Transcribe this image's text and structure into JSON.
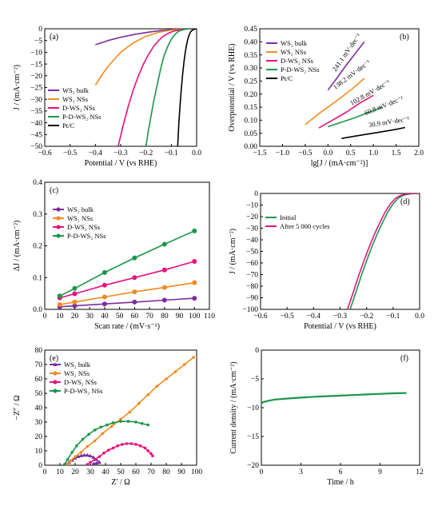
{
  "figure": {
    "background": "#ffffff"
  },
  "chart_data": [
    {
      "id": "a",
      "panel_label": "(a)",
      "type": "line",
      "xlabel": "Potential / V (vs RHE)",
      "ylabel": "J / (mA·cm⁻²)",
      "xlim": [
        -0.6,
        0.0
      ],
      "ylim": [
        -50,
        0
      ],
      "xticks": [
        -0.6,
        -0.5,
        -0.4,
        -0.3,
        -0.2,
        -0.1,
        0.0
      ],
      "xtick_labels": [
        "−0.6",
        "−0.5",
        "−0.4",
        "−0.3",
        "−0.2",
        "−0.1",
        "0.0"
      ],
      "yticks": [
        0,
        -5,
        -10,
        -15,
        -20,
        -25,
        -30,
        -35,
        -40,
        -45,
        -50
      ],
      "ytick_labels": [
        "0",
        "−5",
        "−10",
        "−15",
        "−20",
        "−25",
        "−30",
        "−35",
        "−40",
        "−45",
        "−50"
      ],
      "legend_position": "bottom-left",
      "series": [
        {
          "name": "WS₂ bulk",
          "color": "#7b2d9e",
          "x": [
            -0.4,
            -0.35,
            -0.3,
            -0.25,
            -0.2,
            -0.15,
            -0.1,
            -0.05,
            0.0
          ],
          "y": [
            -6.8,
            -5.0,
            -3.6,
            -2.5,
            -1.6,
            -0.9,
            -0.4,
            -0.1,
            0
          ]
        },
        {
          "name": "WS₂ NSs",
          "color": "#f28a1e",
          "x": [
            -0.4,
            -0.37,
            -0.35,
            -0.3,
            -0.25,
            -0.2,
            -0.15,
            -0.1,
            -0.05,
            0.0
          ],
          "y": [
            -24,
            -19,
            -16,
            -10,
            -6,
            -3.2,
            -1.5,
            -0.5,
            -0.1,
            0
          ]
        },
        {
          "name": "D-WS₂ NSs",
          "color": "#e6127f",
          "x": [
            -0.31,
            -0.29,
            -0.27,
            -0.25,
            -0.23,
            -0.21,
            -0.19,
            -0.17,
            -0.15,
            -0.13,
            -0.11,
            -0.09,
            -0.07,
            -0.05,
            -0.03,
            0.0
          ],
          "y": [
            -50,
            -41,
            -33,
            -26,
            -20,
            -15,
            -11,
            -7.5,
            -5,
            -3,
            -1.8,
            -1,
            -0.5,
            -0.2,
            -0.05,
            0
          ]
        },
        {
          "name": "P-D-WS₂ NSs",
          "color": "#1a9648",
          "x": [
            -0.2,
            -0.19,
            -0.18,
            -0.17,
            -0.16,
            -0.15,
            -0.14,
            -0.13,
            -0.12,
            -0.11,
            -0.1,
            -0.09,
            -0.08,
            -0.07,
            -0.05,
            -0.03,
            0.0
          ],
          "y": [
            -50,
            -43,
            -37,
            -31,
            -26,
            -21,
            -16,
            -12,
            -9,
            -6.5,
            -4.5,
            -3,
            -1.8,
            -1,
            -0.3,
            -0.05,
            0
          ]
        },
        {
          "name": "Pt/C",
          "color": "#000000",
          "x": [
            -0.075,
            -0.07,
            -0.065,
            -0.06,
            -0.055,
            -0.05,
            -0.045,
            -0.04,
            -0.035,
            -0.03,
            -0.025,
            -0.02,
            -0.01,
            0.0
          ],
          "y": [
            -50,
            -40,
            -32,
            -25,
            -19,
            -14,
            -10,
            -7,
            -4.5,
            -2.8,
            -1.5,
            -0.8,
            -0.2,
            0
          ]
        }
      ]
    },
    {
      "id": "b",
      "panel_label": "(b)",
      "type": "line",
      "xlabel": "lg[J / (mA·cm⁻²)]",
      "ylabel": "Overpotential / V (vs RHE)",
      "xlim": [
        -1.5,
        2.0
      ],
      "ylim": [
        0.0,
        0.45
      ],
      "xticks": [
        -1.5,
        -1.0,
        -0.5,
        0.0,
        0.5,
        1.0,
        1.5,
        2.0
      ],
      "xtick_labels": [
        "−1.5",
        "−1.0",
        "−0.5",
        "0.0",
        "0.5",
        "1.0",
        "1.5",
        "2.0"
      ],
      "yticks": [
        0.0,
        0.05,
        0.1,
        0.15,
        0.2,
        0.25,
        0.3,
        0.35,
        0.4,
        0.45
      ],
      "ytick_labels": [
        "0.00",
        "0.05",
        "0.10",
        "0.15",
        "0.20",
        "0.25",
        "0.30",
        "0.35",
        "0.40",
        "0.45"
      ],
      "legend_position": "top-left",
      "series": [
        {
          "name": "WS₂ bulk",
          "color": "#7b2d9e",
          "x": [
            0.0,
            0.2,
            0.4,
            0.6,
            0.8
          ],
          "y": [
            0.215,
            0.262,
            0.31,
            0.355,
            0.4
          ]
        },
        {
          "name": "WS₂ NSs",
          "color": "#f28a1e",
          "x": [
            -0.5,
            -0.2,
            0.2,
            0.5,
            0.8
          ],
          "y": [
            0.083,
            0.125,
            0.175,
            0.215,
            0.26
          ]
        },
        {
          "name": "D-WS₂ NSs",
          "color": "#e6127f",
          "x": [
            -0.2,
            0.1,
            0.4,
            0.7,
            1.0
          ],
          "y": [
            0.07,
            0.1,
            0.13,
            0.165,
            0.195
          ]
        },
        {
          "name": "P-D-WS₂ NSs",
          "color": "#1a9648",
          "x": [
            0.0,
            0.3,
            0.6,
            0.9,
            1.2
          ],
          "y": [
            0.075,
            0.092,
            0.11,
            0.13,
            0.15
          ]
        },
        {
          "name": "Pt/C",
          "color": "#000000",
          "x": [
            0.3,
            0.7,
            1.1,
            1.5,
            1.7
          ],
          "y": [
            0.03,
            0.042,
            0.053,
            0.065,
            0.072
          ]
        }
      ],
      "annotations": [
        {
          "text": "241.1 mV·dec⁻¹",
          "color": "#7b2d9e",
          "x": 0.45,
          "y": 0.355,
          "angle": -55
        },
        {
          "text": "138.2 mV·dec⁻¹",
          "color": "#f28a1e",
          "x": 0.55,
          "y": 0.268,
          "angle": -37
        },
        {
          "text": "102.8 mV·dec⁻¹",
          "color": "#e6127f",
          "x": 0.95,
          "y": 0.198,
          "angle": -30
        },
        {
          "text": "60.8 mV·dec⁻¹",
          "color": "#1a9648",
          "x": 1.25,
          "y": 0.148,
          "angle": -22
        },
        {
          "text": "30.9 mV·dec⁻¹",
          "color": "#000000",
          "x": 1.35,
          "y": 0.085,
          "angle": -9
        }
      ]
    },
    {
      "id": "c",
      "panel_label": "(c)",
      "type": "line",
      "xlabel": "Scan rate / (mV·s⁻¹)",
      "ylabel": "ΔJ / (mA·cm⁻²)",
      "xlim": [
        0,
        110
      ],
      "ylim": [
        0.0,
        0.4
      ],
      "xticks": [
        0,
        10,
        20,
        30,
        40,
        50,
        60,
        70,
        80,
        90,
        100,
        110
      ],
      "xtick_labels": [
        "0",
        "10",
        "20",
        "30",
        "40",
        "50",
        "60",
        "70",
        "80",
        "90",
        "100",
        "110"
      ],
      "yticks": [
        0.0,
        0.1,
        0.2,
        0.3,
        0.4
      ],
      "ytick_labels": [
        "0.0",
        "0.1",
        "0.2",
        "0.3",
        "0.4"
      ],
      "legend_position": "top-left",
      "series": [
        {
          "name": "WS₂ bulk",
          "color": "#7b2d9e",
          "x": [
            10,
            20,
            40,
            60,
            80,
            100
          ],
          "y": [
            0.008,
            0.011,
            0.017,
            0.023,
            0.029,
            0.035
          ]
        },
        {
          "name": "WS₂ NSs",
          "color": "#f28a1e",
          "x": [
            10,
            20,
            40,
            60,
            80,
            100
          ],
          "y": [
            0.015,
            0.023,
            0.039,
            0.055,
            0.069,
            0.084
          ]
        },
        {
          "name": "D-WS₂ NSs",
          "color": "#e6127f",
          "x": [
            10,
            20,
            40,
            60,
            80,
            100
          ],
          "y": [
            0.036,
            0.049,
            0.076,
            0.1,
            0.124,
            0.151
          ]
        },
        {
          "name": "P-D-WS₂ NSs",
          "color": "#1a9648",
          "x": [
            10,
            20,
            40,
            60,
            80,
            100
          ],
          "y": [
            0.042,
            0.066,
            0.116,
            0.162,
            0.205,
            0.247
          ]
        }
      ]
    },
    {
      "id": "d",
      "panel_label": "(d)",
      "type": "line",
      "xlabel": "Potential / V (vs RHE)",
      "ylabel": "J / (mA·cm⁻²)",
      "xlim": [
        -0.6,
        0.0
      ],
      "ylim": [
        -100,
        0
      ],
      "xticks": [
        -0.6,
        -0.5,
        -0.4,
        -0.3,
        -0.2,
        -0.1,
        0.0
      ],
      "xtick_labels": [
        "−0.6",
        "−0.5",
        "−0.4",
        "−0.3",
        "−0.2",
        "−0.1",
        "0.0"
      ],
      "yticks": [
        0,
        -10,
        -20,
        -30,
        -40,
        -50,
        -60,
        -70,
        -80,
        -90,
        -100
      ],
      "ytick_labels": [
        "0",
        "−10",
        "−20",
        "−30",
        "−40",
        "−50",
        "−60",
        "−70",
        "−80",
        "−90",
        "−100"
      ],
      "legend_position": "middle-left",
      "series": [
        {
          "name": "Initial",
          "color": "#1a9648",
          "x": [
            -0.262,
            -0.24,
            -0.22,
            -0.2,
            -0.18,
            -0.16,
            -0.14,
            -0.12,
            -0.1,
            -0.08,
            -0.06,
            -0.04,
            -0.02,
            0.0
          ],
          "y": [
            -100,
            -85,
            -71,
            -58,
            -46,
            -35,
            -25,
            -16,
            -9,
            -4,
            -1.5,
            -0.5,
            -0.1,
            0
          ]
        },
        {
          "name": "After 5 000 cycles",
          "color": "#e6127f",
          "x": [
            -0.272,
            -0.25,
            -0.23,
            -0.21,
            -0.19,
            -0.17,
            -0.15,
            -0.13,
            -0.11,
            -0.09,
            -0.07,
            -0.05,
            -0.03,
            0.0
          ],
          "y": [
            -100,
            -85,
            -71,
            -58,
            -46,
            -35,
            -25,
            -16,
            -9,
            -4,
            -1.5,
            -0.5,
            -0.1,
            0
          ]
        }
      ]
    },
    {
      "id": "e",
      "panel_label": "(e)",
      "type": "scatter",
      "xlabel": "Z′ / Ω",
      "ylabel": "−Z″ / Ω",
      "xlim": [
        0,
        100
      ],
      "ylim": [
        0,
        80
      ],
      "xticks": [
        0,
        10,
        20,
        30,
        40,
        50,
        60,
        70,
        80,
        90,
        100
      ],
      "xtick_labels": [
        "0",
        "10",
        "20",
        "30",
        "40",
        "50",
        "60",
        "70",
        "80",
        "90",
        "100"
      ],
      "yticks": [
        0,
        10,
        20,
        30,
        40,
        50,
        60,
        70,
        80
      ],
      "ytick_labels": [
        "0",
        "10",
        "20",
        "30",
        "40",
        "50",
        "60",
        "70",
        "80"
      ],
      "legend_position": "top-left",
      "series": [
        {
          "name": "WS₂ bulk",
          "color": "#7b2d9e",
          "marker": "triangle",
          "x": [
            14,
            16,
            18,
            20,
            22,
            24,
            26,
            28,
            30,
            32,
            34,
            36,
            34,
            32
          ],
          "y": [
            0.5,
            2,
            3.5,
            5,
            6,
            6.6,
            7,
            7,
            6.5,
            5.5,
            4,
            2,
            1.5,
            1
          ]
        },
        {
          "name": "WS₂ NSs",
          "color": "#f28a1e",
          "marker": "circle",
          "x": [
            15,
            17,
            20,
            24,
            28,
            33,
            38,
            44,
            50,
            56,
            62,
            68,
            74,
            80,
            86,
            92,
            98
          ],
          "y": [
            0.5,
            3,
            6,
            9,
            13,
            17,
            22,
            27,
            32,
            37,
            43,
            49,
            55,
            60,
            65,
            70,
            75
          ]
        },
        {
          "name": "D-WS₂ NSs",
          "color": "#e6127f",
          "marker": "circle",
          "x": [
            28,
            30,
            33,
            36,
            39,
            42,
            45,
            48,
            51,
            54,
            57,
            60,
            63,
            66,
            68,
            70,
            71
          ],
          "y": [
            0.5,
            2,
            4,
            6,
            8.5,
            10.5,
            12,
            13.5,
            14.5,
            15,
            15,
            14.5,
            13.5,
            12,
            10,
            8,
            6.5
          ]
        },
        {
          "name": "P-D-WS₂ NSs",
          "color": "#1a9648",
          "marker": "circle",
          "x": [
            13,
            15,
            18,
            21,
            25,
            29,
            33,
            37,
            41,
            45,
            50,
            55,
            60,
            64,
            68
          ],
          "y": [
            0.5,
            4,
            9,
            13.5,
            18,
            21.5,
            24.5,
            26.5,
            28,
            29.5,
            30.5,
            30.5,
            30,
            29,
            28
          ]
        }
      ]
    },
    {
      "id": "f",
      "panel_label": "(f)",
      "type": "line",
      "xlabel": "Time / h",
      "ylabel": "Current density / (mA·cm⁻²)",
      "xlim": [
        0,
        12
      ],
      "ylim": [
        -20,
        0
      ],
      "xticks": [
        0,
        3,
        6,
        9,
        12
      ],
      "xtick_labels": [
        "0",
        "3",
        "6",
        "9",
        "12"
      ],
      "yticks": [
        0,
        -5,
        -10,
        -15,
        -20
      ],
      "ytick_labels": [
        "0",
        "−5",
        "−10",
        "−15",
        "−20"
      ],
      "series": [
        {
          "name": "",
          "color": "#1a9648",
          "x": [
            0,
            0.2,
            0.5,
            1,
            1.5,
            2,
            3,
            4,
            5,
            6,
            7,
            8,
            9,
            10,
            11
          ],
          "y": [
            -9.2,
            -9.0,
            -8.8,
            -8.6,
            -8.5,
            -8.4,
            -8.25,
            -8.1,
            -8.0,
            -7.9,
            -7.8,
            -7.7,
            -7.6,
            -7.5,
            -7.45
          ]
        }
      ]
    }
  ]
}
